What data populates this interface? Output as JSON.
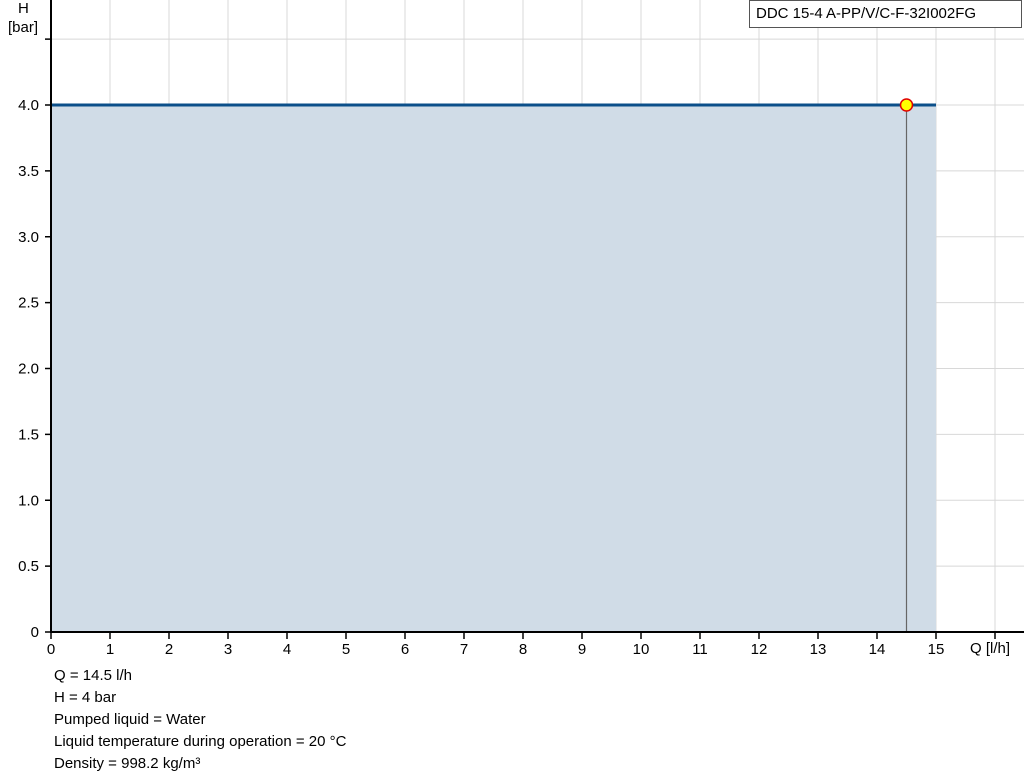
{
  "chart_data": {
    "type": "area",
    "title": "",
    "legend": "DDC 15-4 A-PP/V/C-F-32I002FG",
    "xlabel": "Q [l/h]",
    "ylabel_line1": "H",
    "ylabel_line2": "[bar]",
    "xlim": [
      0,
      16.3
    ],
    "ylim": [
      0,
      4.75
    ],
    "xticks": [
      0,
      1,
      2,
      3,
      4,
      5,
      6,
      7,
      8,
      9,
      10,
      11,
      12,
      13,
      14,
      15
    ],
    "yticks": [
      0,
      0.5,
      1.0,
      1.5,
      2.0,
      2.5,
      3.0,
      3.5,
      4.0
    ],
    "grid": true,
    "series": [
      {
        "x": [
          0,
          15
        ],
        "y": [
          4.0,
          4.0
        ],
        "color": "#0b4f8a",
        "fill": "#d0dce7"
      }
    ],
    "operating_point": {
      "x": 14.5,
      "y": 4.0,
      "fill": "#ffff00",
      "stroke": "#e00000"
    }
  },
  "info": [
    "Q = 14.5 l/h",
    "H = 4 bar",
    "Pumped liquid = Water",
    "Liquid temperature during operation = 20 °C",
    "Density = 998.2 kg/m³"
  ]
}
